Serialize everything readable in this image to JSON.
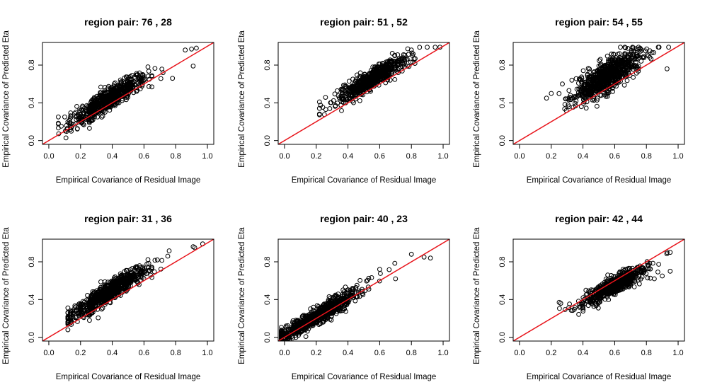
{
  "figure": {
    "background": "#ffffff",
    "point_color": "#000000",
    "line_color": "#e8141b"
  },
  "chart_data": [
    {
      "type": "scatter",
      "title": "region pair: 76 , 28",
      "xlabel": "Empirical Covariance of Residual Image",
      "ylabel": "Empirical Covariance of Predicted Eta",
      "xlim": [
        0,
        1.0
      ],
      "ylim": [
        0,
        1.0
      ],
      "xticks": [
        "0.0",
        "0.2",
        "0.4",
        "0.6",
        "0.8",
        "1.0"
      ],
      "yticks": [
        "0.0",
        "0.4",
        "0.8"
      ],
      "reference_line": {
        "slope": 1,
        "intercept": 0,
        "color": "#e8141b"
      },
      "point_cloud": {
        "n": 700,
        "x_min": 0.06,
        "x_max": 0.95,
        "x_center": 0.38,
        "x_spread": 0.12,
        "slope": 1.0,
        "intercept": 0.06,
        "noise": 0.055,
        "seed": 76
      },
      "notable_points": [
        [
          0.06,
          0.25
        ],
        [
          0.1,
          0.25
        ],
        [
          0.86,
          0.96
        ],
        [
          0.9,
          0.97
        ],
        [
          0.93,
          0.98
        ],
        [
          0.91,
          0.79
        ],
        [
          0.78,
          0.66
        ],
        [
          0.72,
          0.72
        ]
      ]
    },
    {
      "type": "scatter",
      "title": "region pair: 51 , 52",
      "xlabel": "Empirical Covariance of Residual Image",
      "ylabel": "Empirical Covariance of Predicted Eta",
      "xlim": [
        0,
        1.0
      ],
      "ylim": [
        0,
        1.0
      ],
      "xticks": [
        "0.0",
        "0.2",
        "0.4",
        "0.6",
        "0.8",
        "1.0"
      ],
      "yticks": [
        "0.0",
        "0.4",
        "0.8"
      ],
      "reference_line": {
        "slope": 1,
        "intercept": 0,
        "color": "#e8141b"
      },
      "point_cloud": {
        "n": 700,
        "x_min": 0.22,
        "x_max": 0.98,
        "x_center": 0.55,
        "x_spread": 0.1,
        "slope": 1.0,
        "intercept": 0.1,
        "noise": 0.05,
        "seed": 51
      },
      "notable_points": [
        [
          0.22,
          0.41
        ],
        [
          0.26,
          0.33
        ],
        [
          0.9,
          0.99
        ],
        [
          0.95,
          0.99
        ],
        [
          0.98,
          0.99
        ],
        [
          0.8,
          0.96
        ]
      ]
    },
    {
      "type": "scatter",
      "title": "region pair: 54 , 55",
      "xlabel": "Empirical Covariance of Residual Image",
      "ylabel": "Empirical Covariance of Predicted Eta",
      "xlim": [
        0,
        1.0
      ],
      "ylim": [
        0,
        1.0
      ],
      "xticks": [
        "0.0",
        "0.2",
        "0.4",
        "0.6",
        "0.8",
        "1.0"
      ],
      "yticks": [
        "0.0",
        "0.4",
        "0.8"
      ],
      "reference_line": {
        "slope": 1,
        "intercept": 0,
        "color": "#e8141b"
      },
      "point_cloud": {
        "n": 800,
        "x_min": 0.15,
        "x_max": 0.96,
        "x_center": 0.55,
        "x_spread": 0.1,
        "slope": 0.95,
        "intercept": 0.16,
        "noise": 0.08,
        "seed": 54
      },
      "notable_points": [
        [
          0.17,
          0.45
        ],
        [
          0.2,
          0.5
        ],
        [
          0.27,
          0.6
        ],
        [
          0.93,
          0.76
        ],
        [
          0.88,
          0.99
        ],
        [
          0.94,
          0.99
        ],
        [
          0.33,
          0.64
        ]
      ]
    },
    {
      "type": "scatter",
      "title": "region pair: 31 , 36",
      "xlabel": "Empirical Covariance of Residual Image",
      "ylabel": "Empirical Covariance of Predicted Eta",
      "xlim": [
        0,
        1.0
      ],
      "ylim": [
        0,
        1.0
      ],
      "xticks": [
        "0.0",
        "0.2",
        "0.4",
        "0.6",
        "0.8",
        "1.0"
      ],
      "yticks": [
        "0.0",
        "0.4",
        "0.8"
      ],
      "reference_line": {
        "slope": 1,
        "intercept": 0,
        "color": "#e8141b"
      },
      "point_cloud": {
        "n": 800,
        "x_min": 0.12,
        "x_max": 0.97,
        "x_center": 0.38,
        "x_spread": 0.12,
        "slope": 1.05,
        "intercept": 0.08,
        "noise": 0.05,
        "seed": 31
      },
      "notable_points": [
        [
          0.12,
          0.2
        ],
        [
          0.14,
          0.16
        ],
        [
          0.91,
          0.96
        ],
        [
          0.92,
          0.95
        ],
        [
          0.97,
          0.99
        ],
        [
          0.75,
          0.86
        ]
      ]
    },
    {
      "type": "scatter",
      "title": "region pair: 40 , 23",
      "xlabel": "Empirical Covariance of Residual Image",
      "ylabel": "Empirical Covariance of Predicted Eta",
      "xlim": [
        0,
        1.0
      ],
      "ylim": [
        0,
        1.0
      ],
      "xticks": [
        "0.0",
        "0.2",
        "0.4",
        "0.6",
        "0.8",
        "1.0"
      ],
      "yticks": [
        "0.0",
        "0.4",
        "0.8"
      ],
      "reference_line": {
        "slope": 1,
        "intercept": 0,
        "color": "#e8141b"
      },
      "point_cloud": {
        "n": 800,
        "x_min": -0.02,
        "x_max": 0.93,
        "x_center": 0.2,
        "x_spread": 0.14,
        "slope": 1.0,
        "intercept": 0.02,
        "noise": 0.045,
        "seed": 40
      },
      "notable_points": [
        [
          0.0,
          0.0
        ],
        [
          -0.02,
          0.01
        ],
        [
          0.88,
          0.85
        ],
        [
          0.92,
          0.84
        ],
        [
          0.8,
          0.88
        ],
        [
          0.7,
          0.62
        ],
        [
          0.6,
          0.72
        ]
      ]
    },
    {
      "type": "scatter",
      "title": "region pair: 42 , 44",
      "xlabel": "Empirical Covariance of Residual Image",
      "ylabel": "Empirical Covariance of Predicted Eta",
      "xlim": [
        0,
        1.0
      ],
      "ylim": [
        0,
        1.0
      ],
      "xticks": [
        "0.0",
        "0.2",
        "0.4",
        "0.6",
        "0.8",
        "1.0"
      ],
      "yticks": [
        "0.0",
        "0.4",
        "0.8"
      ],
      "reference_line": {
        "slope": 1,
        "intercept": 0,
        "color": "#e8141b"
      },
      "point_cloud": {
        "n": 700,
        "x_min": 0.25,
        "x_max": 0.95,
        "x_center": 0.6,
        "x_spread": 0.1,
        "slope": 0.85,
        "intercept": 0.04,
        "noise": 0.045,
        "seed": 42
      },
      "notable_points": [
        [
          0.25,
          0.37
        ],
        [
          0.26,
          0.36
        ],
        [
          0.93,
          0.9
        ],
        [
          0.95,
          0.9
        ],
        [
          0.9,
          0.65
        ],
        [
          0.95,
          0.7
        ],
        [
          0.85,
          0.62
        ]
      ]
    }
  ]
}
